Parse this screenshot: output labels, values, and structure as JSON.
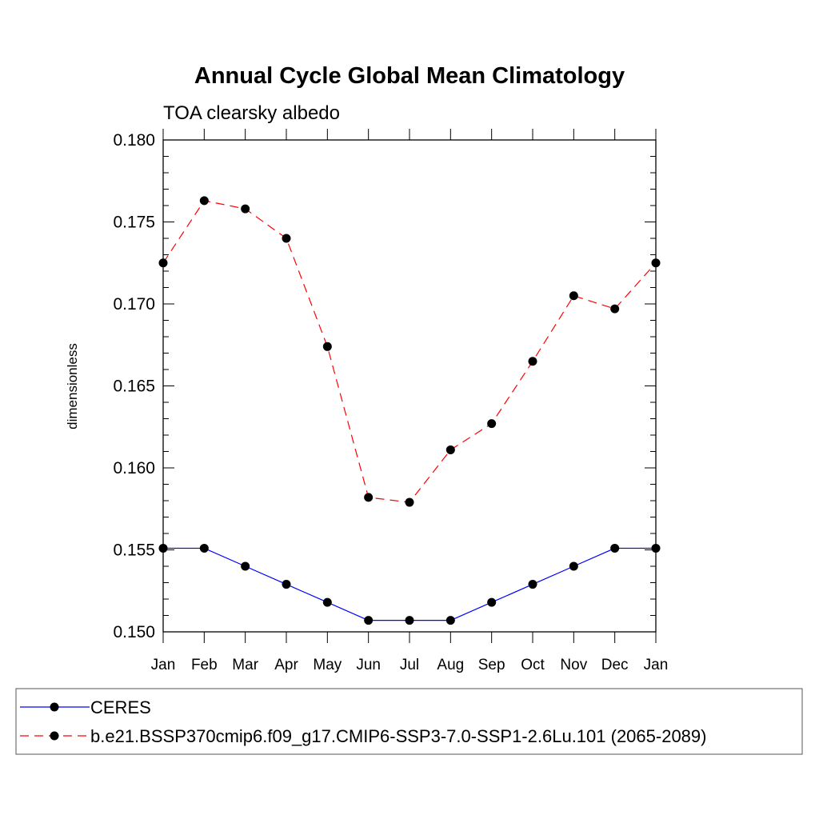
{
  "chart_data": {
    "type": "line",
    "title": "Annual Cycle Global Mean Climatology",
    "subtitle": "TOA clearsky albedo",
    "xlabel": "",
    "ylabel": "dimensionless",
    "categories": [
      "Jan",
      "Feb",
      "Mar",
      "Apr",
      "May",
      "Jun",
      "Jul",
      "Aug",
      "Sep",
      "Oct",
      "Nov",
      "Dec",
      "Jan"
    ],
    "ylim": [
      0.15,
      0.18
    ],
    "yticks": [
      "0.150",
      "0.155",
      "0.160",
      "0.165",
      "0.170",
      "0.175",
      "0.180"
    ],
    "series": [
      {
        "name": "CERES",
        "color": "#0000ff",
        "dash": "solid",
        "marker": "filled-circle",
        "values": [
          0.1551,
          0.1551,
          0.154,
          0.1529,
          0.1518,
          0.1507,
          0.1507,
          0.1507,
          0.1518,
          0.1529,
          0.154,
          0.1551,
          0.1551
        ]
      },
      {
        "name": "b.e21.BSSP370cmip6.f09_g17.CMIP6-SSP3-7.0-SSP1-2.6Lu.101 (2065-2089)",
        "color": "#ff0000",
        "dash": "dashed",
        "marker": "filled-circle",
        "values": [
          0.1725,
          0.1763,
          0.1758,
          0.174,
          0.1674,
          0.1582,
          0.1579,
          0.1611,
          0.1627,
          0.1665,
          0.1705,
          0.1697,
          0.1725
        ]
      }
    ],
    "grid": false,
    "legend_position": "bottom"
  }
}
